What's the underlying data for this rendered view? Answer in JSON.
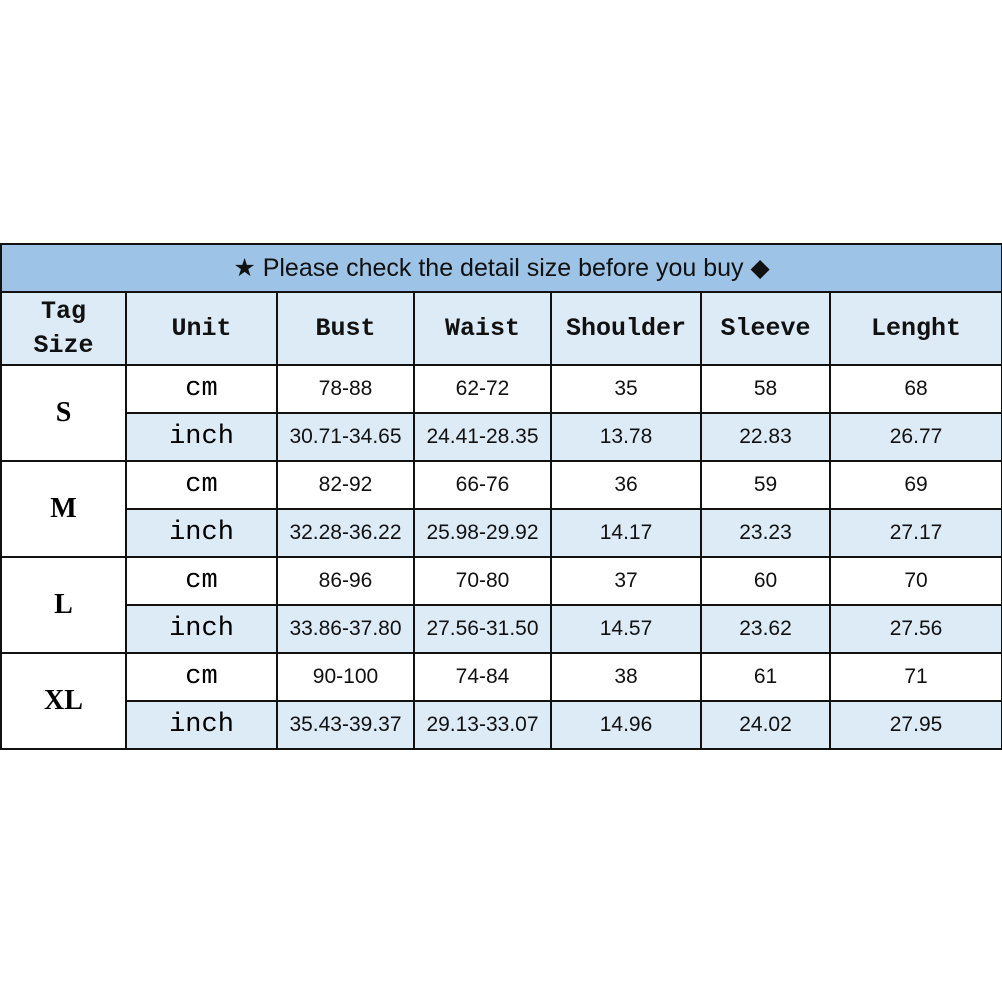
{
  "title": {
    "star_icon": "★",
    "text": "Please check the detail size before you buy",
    "diamond_icon": "◆"
  },
  "columns": [
    "Tag Size",
    "Unit",
    "Bust",
    "Waist",
    "Shoulder",
    "Sleeve",
    "Lenght"
  ],
  "colors": {
    "title_bg": "#9dc3e6",
    "header_bg": "#ddebf7",
    "inch_row_bg": "#ddebf7"
  },
  "rows": [
    {
      "size": "S",
      "cm": {
        "unit": "cm",
        "values": [
          "78-88",
          "62-72",
          "35",
          "58",
          "68"
        ]
      },
      "inch": {
        "unit": "inch",
        "values": [
          "30.71-34.65",
          "24.41-28.35",
          "13.78",
          "22.83",
          "26.77"
        ]
      }
    },
    {
      "size": "M",
      "cm": {
        "unit": "cm",
        "values": [
          "82-92",
          "66-76",
          "36",
          "59",
          "69"
        ]
      },
      "inch": {
        "unit": "inch",
        "values": [
          "32.28-36.22",
          "25.98-29.92",
          "14.17",
          "23.23",
          "27.17"
        ]
      }
    },
    {
      "size": "L",
      "cm": {
        "unit": "cm",
        "values": [
          "86-96",
          "70-80",
          "37",
          "60",
          "70"
        ]
      },
      "inch": {
        "unit": "inch",
        "values": [
          "33.86-37.80",
          "27.56-31.50",
          "14.57",
          "23.62",
          "27.56"
        ]
      }
    },
    {
      "size": "XL",
      "cm": {
        "unit": "cm",
        "values": [
          "90-100",
          "74-84",
          "38",
          "61",
          "71"
        ]
      },
      "inch": {
        "unit": "inch",
        "values": [
          "35.43-39.37",
          "29.13-33.07",
          "14.96",
          "24.02",
          "27.95"
        ]
      }
    }
  ]
}
